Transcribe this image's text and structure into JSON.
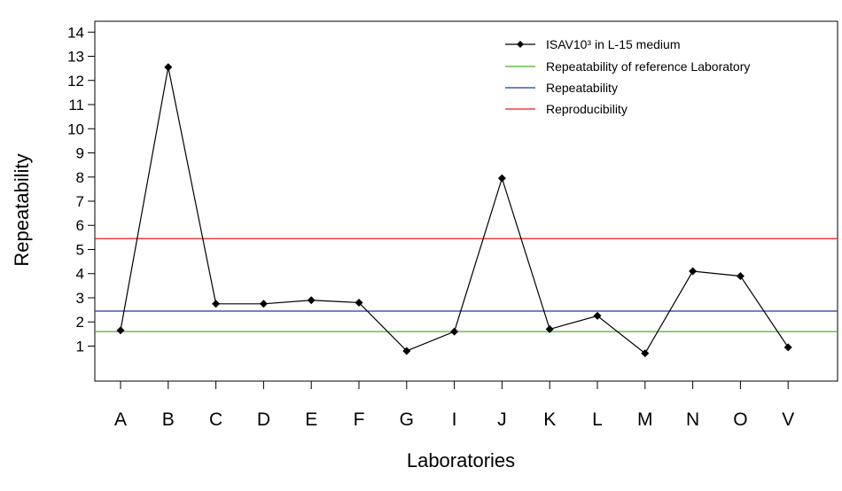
{
  "chart_data": {
    "type": "line",
    "categories": [
      "A",
      "B",
      "C",
      "D",
      "E",
      "F",
      "G",
      "I",
      "J",
      "K",
      "L",
      "M",
      "N",
      "O",
      "V"
    ],
    "series": [
      {
        "name": "ISAV10³ in L-15 medium",
        "values": [
          1.65,
          12.55,
          2.75,
          2.75,
          2.9,
          2.8,
          0.8,
          1.6,
          7.95,
          1.7,
          2.25,
          0.7,
          4.1,
          3.9,
          0.95
        ],
        "color": "#000000"
      }
    ],
    "reference_lines": [
      {
        "name": "Repeatability of reference Laboratory",
        "value": 1.6,
        "color": "#4caf28"
      },
      {
        "name": "Repeatability",
        "value": 2.45,
        "color": "#1f3a93"
      },
      {
        "name": "Reproducibility",
        "value": 5.45,
        "color": "#e02020"
      }
    ],
    "xlabel": "Laboratories",
    "ylabel": "Repeatability",
    "y_ticks": [
      1,
      2,
      3,
      4,
      5,
      6,
      7,
      8,
      9,
      10,
      11,
      12,
      13,
      14
    ],
    "ylim": [
      -0.45,
      14.45
    ],
    "grid": false,
    "legend_position": "top-right"
  }
}
